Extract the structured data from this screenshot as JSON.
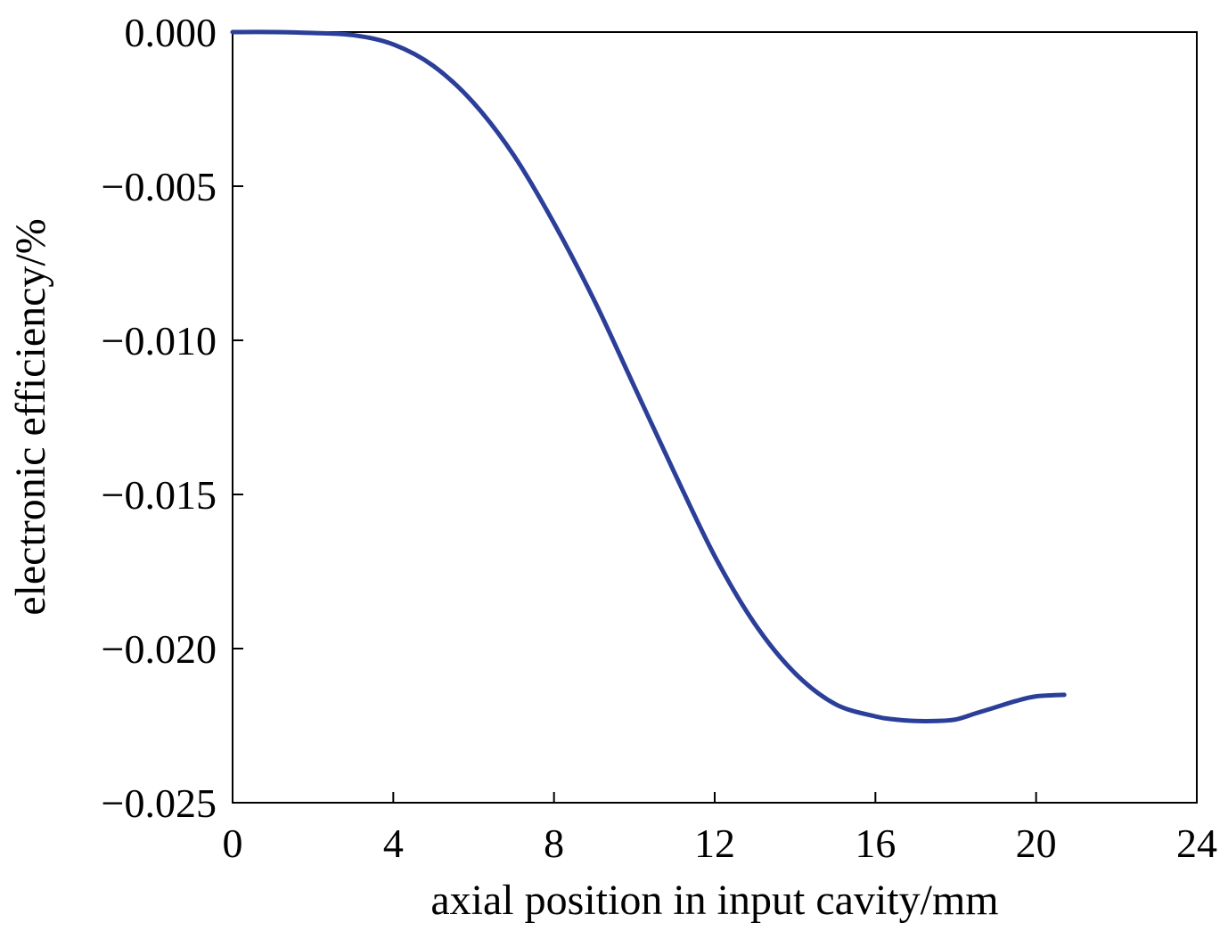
{
  "chart_data": {
    "type": "line",
    "title": "",
    "xlabel": "axial position in input cavity/mm",
    "ylabel": "electronic efficiency/%",
    "xlim": [
      0,
      24
    ],
    "ylim": [
      -0.025,
      0.0
    ],
    "xticks": [
      0,
      4,
      8,
      12,
      16,
      20,
      24
    ],
    "xtick_labels": [
      "0",
      "4",
      "8",
      "12",
      "16",
      "20",
      "24"
    ],
    "yticks": [
      0.0,
      -0.005,
      -0.01,
      -0.015,
      -0.02,
      -0.025
    ],
    "ytick_labels": [
      "0.000",
      "−0.005",
      "−0.010",
      "−0.015",
      "−0.020",
      "−0.025"
    ],
    "grid": false,
    "legend": "none",
    "series": [
      {
        "color": "#2b3f99",
        "x": [
          0,
          1,
          2,
          3,
          4,
          5,
          6,
          7,
          8,
          9,
          10,
          11,
          12,
          13,
          14,
          15,
          16,
          16.5,
          17,
          17.5,
          18,
          18.5,
          19,
          19.5,
          20,
          20.7
        ],
        "y": [
          0.0,
          0.0,
          -3e-05,
          -0.0001,
          -0.0004,
          -0.0011,
          -0.0023,
          -0.004,
          -0.0062,
          -0.0087,
          -0.0115,
          -0.0143,
          -0.017,
          -0.0192,
          -0.0208,
          -0.0218,
          -0.0222,
          -0.0223,
          -0.02235,
          -0.02235,
          -0.0223,
          -0.0221,
          -0.0219,
          -0.0217,
          -0.02155,
          -0.0215
        ]
      }
    ]
  }
}
